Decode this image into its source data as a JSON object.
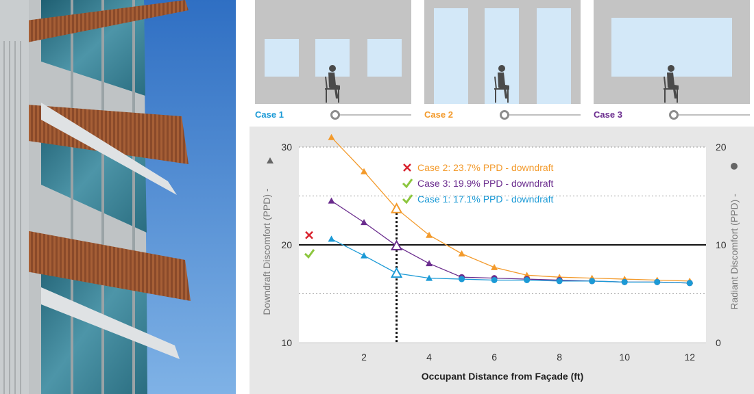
{
  "cases": [
    {
      "label": "Case 1",
      "color": "#1b9ad6"
    },
    {
      "label": "Case 2",
      "color": "#f39a2b"
    },
    {
      "label": "Case 3",
      "color": "#6b2d8e"
    }
  ],
  "annotations": [
    {
      "text": "Case 2: 23.7% PPD - downdraft",
      "color": "#f39a2b",
      "mark": "cross",
      "mark_color": "#d9232e"
    },
    {
      "text": "Case 3: 19.9% PPD - downdraft",
      "color": "#6b2d8e",
      "mark": "check",
      "mark_color": "#8cc63e"
    },
    {
      "text": "Case 1: 17.1% PPD - downdraft",
      "color": "#1b9ad6",
      "mark": "check",
      "mark_color": "#8cc63e"
    }
  ],
  "chart_data": {
    "type": "line",
    "xlabel": "Occupant Distance from Façade (ft)",
    "ylabel_left": "Downdraft Discomfort (PPD) -",
    "ylabel_right": "Radiant Discomfort (PPD) -",
    "x_ticks": [
      2,
      4,
      6,
      8,
      10,
      12
    ],
    "xlim": [
      0,
      12.5
    ],
    "y_left_ticks": [
      10,
      20,
      30
    ],
    "ylim_left": [
      10,
      30
    ],
    "y_right_ticks": [
      0,
      10,
      20
    ],
    "ylim_right": [
      0,
      20
    ],
    "threshold": 20,
    "selected_x": 3,
    "series": [
      {
        "name": "Case 2",
        "color": "#f39a2b",
        "x": [
          1,
          2,
          3,
          4,
          5,
          6,
          7,
          8,
          9,
          10,
          11,
          12
        ],
        "y": [
          31.0,
          27.5,
          23.7,
          21.0,
          19.1,
          17.7,
          16.9,
          16.7,
          16.6,
          16.5,
          16.4,
          16.3
        ]
      },
      {
        "name": "Case 3",
        "color": "#6b2d8e",
        "x": [
          1,
          2,
          3,
          4,
          5,
          6,
          7,
          8,
          9,
          10,
          11,
          12
        ],
        "y": [
          24.5,
          22.3,
          19.9,
          18.1,
          16.7,
          16.6,
          16.5,
          16.4,
          16.3,
          16.2,
          16.2,
          16.1
        ]
      },
      {
        "name": "Case 1",
        "color": "#1b9ad6",
        "x": [
          1,
          2,
          3,
          4,
          5,
          6,
          7,
          8,
          9,
          10,
          11,
          12
        ],
        "y": [
          20.6,
          18.9,
          17.1,
          16.6,
          16.5,
          16.4,
          16.4,
          16.3,
          16.3,
          16.2,
          16.2,
          16.1
        ]
      }
    ]
  }
}
